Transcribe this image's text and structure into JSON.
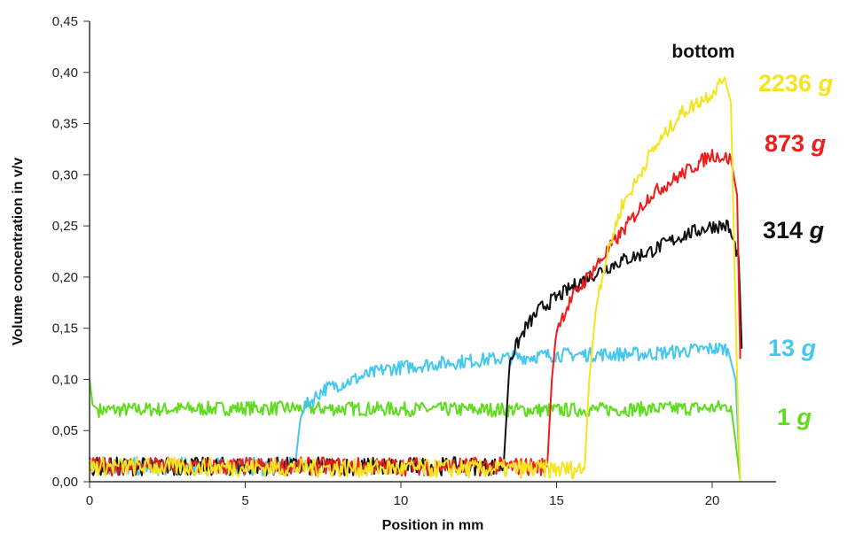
{
  "chart_data": {
    "type": "line",
    "title": "",
    "xlabel": "Position in mm",
    "ylabel": "Volume concentration in v/v",
    "xlim": [
      0,
      22
    ],
    "ylim": [
      0,
      0.45
    ],
    "x_ticks": [
      "0",
      "5",
      "10",
      "15",
      "20"
    ],
    "x_tick_values": [
      0,
      5,
      10,
      15,
      20
    ],
    "y_ticks": [
      "0,00",
      "0,05",
      "0,10",
      "0,15",
      "0,20",
      "0,25",
      "0,30",
      "0,35",
      "0,40",
      "0,45"
    ],
    "y_tick_values": [
      0,
      0.05,
      0.1,
      0.15,
      0.2,
      0.25,
      0.3,
      0.35,
      0.4,
      0.45
    ],
    "grid": false,
    "annotation": "bottom",
    "series": [
      {
        "name": "1 g",
        "value": "1",
        "unit": "g",
        "color": "#5fdc1e",
        "x": [
          0,
          0.1,
          0.3,
          5,
          10,
          15,
          20,
          20.6,
          20.75,
          20.9
        ],
        "y": [
          0.1,
          0.075,
          0.07,
          0.072,
          0.071,
          0.07,
          0.072,
          0.074,
          0.04,
          0.0
        ]
      },
      {
        "name": "13 g",
        "value": "13",
        "unit": "g",
        "color": "#44c8ee",
        "x": [
          0,
          6.6,
          6.8,
          7.5,
          8.5,
          9.5,
          11,
          13,
          15,
          18,
          20,
          20.5,
          20.75,
          20.9
        ],
        "y": [
          0.015,
          0.015,
          0.07,
          0.09,
          0.1,
          0.11,
          0.115,
          0.12,
          0.124,
          0.125,
          0.13,
          0.13,
          0.1,
          0.0
        ]
      },
      {
        "name": "314 g",
        "value": "314",
        "unit": "g",
        "color": "#111111",
        "x": [
          0,
          13.3,
          13.5,
          14,
          14.5,
          15.5,
          16,
          17,
          18,
          19,
          20,
          20.5,
          20.85,
          20.95
        ],
        "y": [
          0.015,
          0.015,
          0.12,
          0.15,
          0.17,
          0.19,
          0.2,
          0.215,
          0.225,
          0.24,
          0.25,
          0.25,
          0.22,
          0.13
        ]
      },
      {
        "name": "873 g",
        "value": "873",
        "unit": "g",
        "color": "#ee1c1c",
        "x": [
          0,
          14.7,
          14.85,
          15,
          15.5,
          16,
          16.5,
          17,
          17.5,
          18,
          18.5,
          19,
          19.5,
          20,
          20.6,
          20.8,
          20.9
        ],
        "y": [
          0.015,
          0.015,
          0.1,
          0.15,
          0.18,
          0.2,
          0.22,
          0.24,
          0.26,
          0.28,
          0.29,
          0.3,
          0.31,
          0.32,
          0.315,
          0.28,
          0.12
        ]
      },
      {
        "name": "2236 g",
        "value": "2236",
        "unit": "g",
        "color": "#f5e41f",
        "x": [
          0,
          15.9,
          16.05,
          16.3,
          16.7,
          17.1,
          17.5,
          18,
          18.5,
          19,
          19.5,
          20,
          20.4,
          20.6,
          20.8,
          20.9
        ],
        "y": [
          0.015,
          0.012,
          0.1,
          0.18,
          0.23,
          0.27,
          0.29,
          0.32,
          0.34,
          0.36,
          0.37,
          0.38,
          0.395,
          0.37,
          0.1,
          0.0
        ]
      }
    ]
  }
}
